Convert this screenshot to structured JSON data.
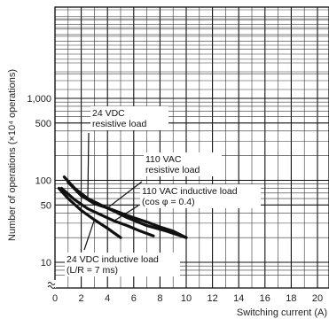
{
  "chart_data": {
    "type": "line",
    "xlabel": "Switching current (A)",
    "ylabel": "Number of operations (×10⁴ operations)",
    "x_ticks": [
      "0",
      "2",
      "4",
      "6",
      "8",
      "10",
      "12",
      "14",
      "16",
      "18",
      "20"
    ],
    "y_ticks": [
      "10",
      "50",
      "100",
      "500",
      "1,000"
    ],
    "xlim": [
      0,
      21
    ],
    "y_scale": "log",
    "grid": true,
    "series": [
      {
        "name": "24 VDC resistive load",
        "x": [
          0.7,
          1.5,
          2.5,
          3.5,
          4.5,
          5.5,
          7,
          8.5,
          10
        ],
        "y": [
          110,
          80,
          60,
          50,
          42,
          35,
          28,
          24,
          20
        ]
      },
      {
        "name": "110 VAC resistive load",
        "x": [
          1,
          2,
          3,
          4,
          5,
          6,
          7,
          8,
          9,
          10
        ],
        "y": [
          95,
          65,
          52,
          46,
          40,
          35,
          31,
          27,
          24,
          20
        ]
      },
      {
        "name": "110 VAC inductive load (cos φ = 0.4)",
        "x": [
          0.5,
          1.5,
          2.5,
          3.5,
          4.5,
          5.5,
          6.5,
          7.5
        ],
        "y": [
          80,
          58,
          45,
          38,
          32,
          28,
          24,
          21
        ]
      },
      {
        "name": "24 VDC inductive load (L/R = 7 ms)",
        "x": [
          0.3,
          1,
          2,
          3,
          4,
          5
        ],
        "y": [
          80,
          60,
          43,
          33,
          26,
          20
        ]
      }
    ],
    "annotations": [
      {
        "lines": [
          "24 VDC",
          "resistive load"
        ],
        "series": 0
      },
      {
        "lines": [
          "110 VAC",
          "resistive load"
        ],
        "series": 1
      },
      {
        "lines": [
          "110 VAC inductive load",
          "(cos φ = 0.4)"
        ],
        "series": 2
      },
      {
        "lines": [
          "24 VDC inductive load",
          "(L/R = 7 ms)"
        ],
        "series": 3
      }
    ],
    "axis_break": "~"
  }
}
